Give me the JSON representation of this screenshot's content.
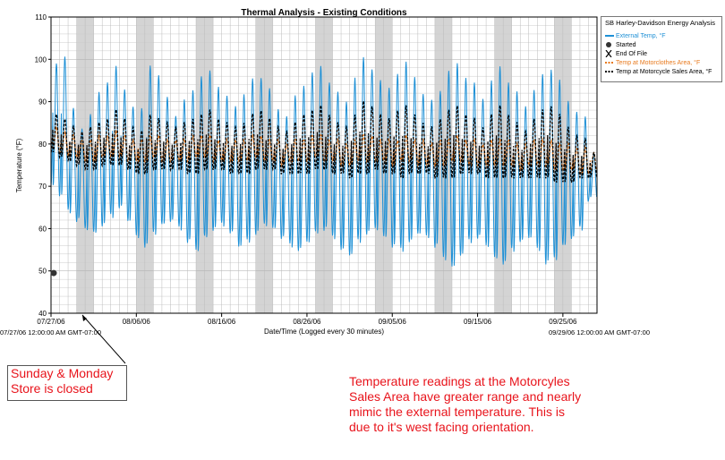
{
  "chart_data": {
    "type": "line",
    "title": "Thermal Analysis - Existing Conditions",
    "xlabel": "Date/Time (Logged every 30 minutes)",
    "ylabel": "Temperature (°F)",
    "ylim": [
      40,
      110
    ],
    "yticks": [
      40,
      50,
      60,
      70,
      80,
      90,
      100,
      110
    ],
    "xlim": [
      "07/27/06",
      "09/29/06"
    ],
    "x_tick_labels": [
      "07/27/06",
      "08/06/06",
      "08/16/06",
      "08/26/06",
      "09/05/06",
      "09/15/06",
      "09/25/06"
    ],
    "x_start_label": "07/27/06 12:00:00 AM GMT-07:00",
    "x_end_label": "09/29/06 12:00:00 AM GMT-07:00",
    "grid": true,
    "legend_position": "right",
    "legend_title": "SB Harley-Davidson Energy Analysis",
    "shaded_day_pairs": [
      "07/30/06",
      "08/06/06",
      "08/13/06",
      "08/20/06",
      "08/27/06",
      "09/03/06",
      "09/10/06",
      "09/17/06",
      "09/24/06"
    ],
    "series": [
      {
        "name": "External Temp, °F",
        "color": "#1e90d6",
        "style": "solid",
        "daily_high": [
          99,
          101,
          88,
          84,
          87,
          92,
          95,
          98,
          93,
          89,
          88,
          99,
          96,
          91,
          87,
          90,
          93,
          96,
          97,
          94,
          91,
          89,
          92,
          95,
          96,
          93,
          88,
          87,
          91,
          94,
          97,
          98,
          95,
          92,
          90,
          96,
          100,
          98,
          95,
          93,
          97,
          99,
          96,
          92,
          90,
          93,
          97,
          99,
          96,
          94,
          91,
          95,
          98,
          95,
          92,
          89,
          93,
          96,
          98,
          95,
          90,
          88,
          86,
          78
        ],
        "daily_low": [
          70,
          68,
          64,
          62,
          60,
          59,
          61,
          63,
          65,
          62,
          58,
          56,
          59,
          61,
          62,
          60,
          57,
          55,
          58,
          60,
          61,
          59,
          56,
          57,
          59,
          61,
          60,
          58,
          56,
          55,
          57,
          59,
          60,
          58,
          55,
          54,
          57,
          59,
          60,
          58,
          56,
          55,
          57,
          59,
          58,
          56,
          53,
          51,
          54,
          57,
          58,
          56,
          53,
          52,
          55,
          57,
          58,
          55,
          52,
          53,
          56,
          58,
          60,
          67
        ]
      },
      {
        "name": "Temp at Motorclothes Area, °F",
        "color": "#e87a1e",
        "style": "dashed",
        "daily_high": [
          84,
          83,
          82,
          81,
          81,
          82,
          82,
          83,
          82,
          81,
          81,
          82,
          82,
          81,
          81,
          81,
          82,
          82,
          82,
          81,
          81,
          81,
          81,
          82,
          82,
          81,
          81,
          80,
          81,
          81,
          82,
          82,
          81,
          81,
          80,
          81,
          82,
          82,
          81,
          81,
          81,
          82,
          81,
          81,
          80,
          81,
          81,
          82,
          81,
          81,
          80,
          81,
          81,
          81,
          80,
          80,
          81,
          81,
          81,
          80,
          80,
          79,
          79,
          78
        ],
        "daily_low": [
          79,
          78,
          77,
          77,
          76,
          76,
          77,
          77,
          77,
          76,
          76,
          76,
          77,
          76,
          76,
          76,
          76,
          77,
          77,
          76,
          76,
          76,
          76,
          76,
          77,
          76,
          76,
          75,
          76,
          76,
          76,
          77,
          76,
          76,
          75,
          75,
          76,
          76,
          76,
          76,
          75,
          76,
          76,
          75,
          75,
          75,
          75,
          76,
          76,
          75,
          75,
          75,
          75,
          75,
          75,
          74,
          75,
          75,
          75,
          74,
          74,
          74,
          73,
          73
        ]
      },
      {
        "name": "Temp at Motorcycle Sales Area, °F",
        "color": "#000000",
        "style": "dashed",
        "daily_high": [
          87,
          86,
          84,
          83,
          84,
          85,
          86,
          88,
          86,
          84,
          83,
          87,
          86,
          85,
          84,
          85,
          86,
          87,
          88,
          86,
          85,
          84,
          85,
          87,
          88,
          86,
          84,
          83,
          85,
          87,
          88,
          89,
          87,
          85,
          84,
          87,
          90,
          89,
          87,
          86,
          88,
          89,
          87,
          85,
          84,
          86,
          88,
          89,
          87,
          86,
          84,
          87,
          89,
          87,
          85,
          83,
          86,
          88,
          89,
          87,
          84,
          82,
          81,
          78
        ],
        "daily_low": [
          78,
          77,
          76,
          75,
          74,
          74,
          75,
          75,
          75,
          74,
          73,
          73,
          74,
          74,
          74,
          74,
          73,
          73,
          74,
          74,
          74,
          73,
          73,
          73,
          74,
          74,
          74,
          73,
          73,
          73,
          73,
          74,
          74,
          73,
          73,
          72,
          73,
          73,
          74,
          73,
          73,
          72,
          73,
          73,
          73,
          72,
          72,
          72,
          73,
          73,
          73,
          72,
          72,
          72,
          72,
          72,
          72,
          72,
          72,
          71,
          71,
          71,
          72,
          72
        ]
      }
    ],
    "markers": [
      {
        "name": "Started",
        "symbol": "dot",
        "x": "07/27/06",
        "y": 49.5
      },
      {
        "name": "End Of File",
        "symbol": "x"
      }
    ]
  },
  "annotations": {
    "closed_box_lines": [
      "Sunday & Monday",
      "Store is closed"
    ],
    "note_lines": [
      "Temperature readings at the Motorcyles",
      "Sales Area have greater range and nearly",
      "mimic the external temperature.  This is",
      "due to it's west facing orientation."
    ]
  }
}
